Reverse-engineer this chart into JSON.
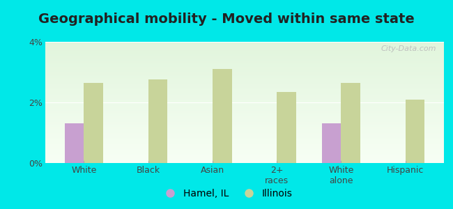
{
  "title": "Geographical mobility - Moved within same state",
  "categories": [
    "White",
    "Black",
    "Asian",
    "2+\nraces",
    "White\nalone",
    "Hispanic"
  ],
  "hamel_values": [
    1.3,
    0.0,
    0.0,
    0.0,
    1.3,
    0.0
  ],
  "illinois_values": [
    2.65,
    2.75,
    3.1,
    2.35,
    2.65,
    2.1
  ],
  "hamel_color": "#c8a0d0",
  "illinois_color": "#c8d49a",
  "background_outer": "#00e8e8",
  "ylim": [
    0,
    4
  ],
  "yticks": [
    0,
    2,
    4
  ],
  "ytick_labels": [
    "0%",
    "2%",
    "4%"
  ],
  "bar_width": 0.3,
  "legend_labels": [
    "Hamel, IL",
    "Illinois"
  ],
  "title_fontsize": 14,
  "tick_fontsize": 9,
  "legend_fontsize": 10,
  "watermark": "City-Data.com"
}
